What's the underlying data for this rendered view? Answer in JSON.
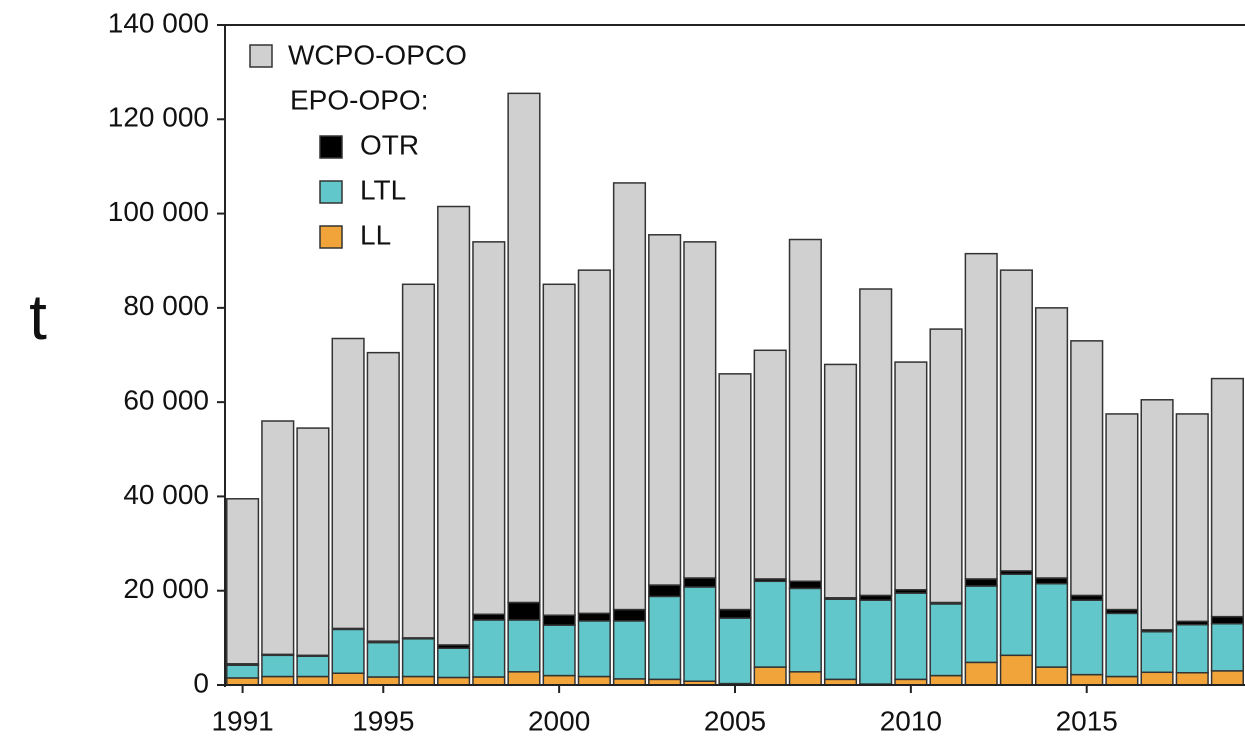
{
  "chart_data": {
    "type": "stacked-bar",
    "y_label": "t",
    "x": [
      1991,
      1992,
      1993,
      1994,
      1995,
      1996,
      1997,
      1998,
      1999,
      2000,
      2001,
      2002,
      2003,
      2004,
      2005,
      2006,
      2007,
      2008,
      2009,
      2010,
      2011,
      2012,
      2013,
      2014,
      2015,
      2016,
      2017,
      2018,
      2019
    ],
    "xlim": [
      1990.5,
      2019.5
    ],
    "xticks": [
      1991,
      1995,
      2000,
      2005,
      2010,
      2015
    ],
    "ylim": [
      0,
      140000
    ],
    "yticks": [
      0,
      {
        "value": 20000,
        "label": "20 000"
      },
      {
        "value": 40000,
        "label": "40 000"
      },
      {
        "value": 60000,
        "label": "60 000"
      },
      {
        "value": 80000,
        "label": "80 000"
      },
      {
        "value": 100000,
        "label": "100 000"
      },
      {
        "value": 120000,
        "label": "120 000"
      },
      {
        "value": 140000,
        "label": "140 000"
      }
    ],
    "legend_group_title": "EPO-OPO:",
    "series": [
      {
        "name": "LL",
        "color": "#f0a43a",
        "values": [
          1500,
          1800,
          1800,
          2500,
          1700,
          1800,
          1600,
          1700,
          2800,
          2000,
          1800,
          1300,
          1200,
          800,
          300,
          3800,
          2800,
          1200,
          200,
          1200,
          2000,
          4800,
          6300,
          3800,
          2200,
          1800,
          2700,
          2600,
          3000
        ]
      },
      {
        "name": "LTL",
        "color": "#62c7ca",
        "values": [
          2700,
          4500,
          4300,
          9300,
          7300,
          8000,
          6200,
          12100,
          11000,
          10700,
          11800,
          12300,
          17600,
          20000,
          13900,
          18200,
          17700,
          17000,
          17800,
          18300,
          15200,
          16200,
          17200,
          17700,
          15800,
          13400,
          8600,
          10200,
          10000
        ]
      },
      {
        "name": "OTR",
        "color": "#000000",
        "values": [
          300,
          200,
          200,
          200,
          300,
          200,
          700,
          1200,
          3700,
          2100,
          1600,
          2400,
          2400,
          1900,
          1800,
          500,
          1500,
          300,
          1000,
          700,
          300,
          1500,
          700,
          1200,
          1000,
          800,
          400,
          700,
          1500
        ]
      },
      {
        "name": "WCPO-OPCO",
        "color": "#d0d0d0",
        "values": [
          35000,
          49500,
          48200,
          61500,
          61200,
          75000,
          93000,
          79000,
          108000,
          70200,
          72800,
          90500,
          74300,
          71300,
          50000,
          48500,
          72500,
          49500,
          65000,
          48300,
          58000,
          69000,
          63800,
          57300,
          54000,
          41500,
          48800,
          44000,
          50500
        ]
      }
    ]
  }
}
